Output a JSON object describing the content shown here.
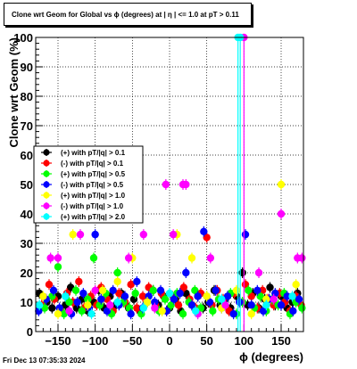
{
  "footer": "Fri Dec 13 07:35:33 2024",
  "chart_data": {
    "type": "scatter",
    "title": "Clone wrt Geom for Global vs ϕ (degrees) at | η | <= 1.0 at pT > 0.11",
    "xlabel": "ϕ (degrees)",
    "ylabel": "Clone wrt Geom (%)",
    "xlim": [
      -180,
      180
    ],
    "ylim": [
      0,
      100
    ],
    "xticks": [
      -150,
      -100,
      -50,
      0,
      50,
      100,
      150
    ],
    "xtick_labels": [
      "−150",
      "−100",
      "−50",
      "0",
      "50",
      "100",
      "150"
    ],
    "yticks": [
      0,
      10,
      20,
      30,
      40,
      50,
      60,
      70,
      80,
      90,
      100
    ],
    "ytick_labels": [
      "0",
      "10",
      "20",
      "30",
      "40",
      "50",
      "60",
      "70",
      "80",
      "90",
      "100"
    ],
    "grid": true,
    "legend_position": "left-middle",
    "series": [
      {
        "name": "(+) with pT/|q| > 0.1",
        "color": "#000000",
        "points": [
          [
            -175,
            13
          ],
          [
            -165,
            10
          ],
          [
            -158,
            8
          ],
          [
            -150,
            12
          ],
          [
            -140,
            9
          ],
          [
            -133,
            15
          ],
          [
            -125,
            8
          ],
          [
            -118,
            11
          ],
          [
            -110,
            7
          ],
          [
            -102,
            10
          ],
          [
            -95,
            14
          ],
          [
            -88,
            8
          ],
          [
            -80,
            12
          ],
          [
            -72,
            9
          ],
          [
            -65,
            13
          ],
          [
            -55,
            8
          ],
          [
            -48,
            11
          ],
          [
            -40,
            7
          ],
          [
            -30,
            10
          ],
          [
            -22,
            14
          ],
          [
            -15,
            9
          ],
          [
            -8,
            12
          ],
          [
            0,
            8
          ],
          [
            8,
            11
          ],
          [
            15,
            7
          ],
          [
            22,
            13
          ],
          [
            30,
            9
          ],
          [
            38,
            12
          ],
          [
            45,
            8
          ],
          [
            52,
            10
          ],
          [
            60,
            14
          ],
          [
            68,
            9
          ],
          [
            75,
            11
          ],
          [
            82,
            8
          ],
          [
            90,
            12
          ],
          [
            98,
            20
          ],
          [
            105,
            9
          ],
          [
            112,
            13
          ],
          [
            120,
            8
          ],
          [
            128,
            11
          ],
          [
            135,
            15
          ],
          [
            142,
            9
          ],
          [
            150,
            12
          ],
          [
            158,
            8
          ],
          [
            165,
            10
          ],
          [
            172,
            13
          ]
        ]
      },
      {
        "name": "(-) with pT/|q| > 0.1",
        "color": "#ff0000",
        "points": [
          [
            -172,
            9
          ],
          [
            -162,
            16
          ],
          [
            -155,
            11
          ],
          [
            -146,
            7
          ],
          [
            -138,
            13
          ],
          [
            -130,
            10
          ],
          [
            -122,
            17
          ],
          [
            -115,
            8
          ],
          [
            -106,
            12
          ],
          [
            -98,
            9
          ],
          [
            -92,
            15
          ],
          [
            -84,
            11
          ],
          [
            -76,
            7
          ],
          [
            -68,
            13
          ],
          [
            -60,
            10
          ],
          [
            -52,
            16
          ],
          [
            -44,
            8
          ],
          [
            -36,
            12
          ],
          [
            -28,
            15
          ],
          [
            -19,
            9
          ],
          [
            -11,
            13
          ],
          [
            -4,
            7
          ],
          [
            4,
            12
          ],
          [
            12,
            9
          ],
          [
            19,
            15
          ],
          [
            27,
            11
          ],
          [
            35,
            8
          ],
          [
            42,
            13
          ],
          [
            50,
            32
          ],
          [
            57,
            9
          ],
          [
            64,
            14
          ],
          [
            72,
            11
          ],
          [
            80,
            7
          ],
          [
            87,
            13
          ],
          [
            95,
            10
          ],
          [
            102,
            16
          ],
          [
            110,
            12
          ],
          [
            118,
            8
          ],
          [
            125,
            14
          ],
          [
            132,
            11
          ],
          [
            140,
            9
          ],
          [
            148,
            13
          ],
          [
            155,
            10
          ],
          [
            162,
            7
          ],
          [
            170,
            12
          ],
          [
            177,
            9
          ]
        ]
      },
      {
        "name": "(+) with pT/|q| > 0.5",
        "color": "#00ff00",
        "points": [
          [
            -168,
            8
          ],
          [
            -158,
            12
          ],
          [
            -150,
            22
          ],
          [
            -142,
            6
          ],
          [
            -135,
            10
          ],
          [
            -126,
            14
          ],
          [
            -118,
            7
          ],
          [
            -110,
            11
          ],
          [
            -102,
            25
          ],
          [
            -94,
            9
          ],
          [
            -86,
            13
          ],
          [
            -78,
            6
          ],
          [
            -70,
            20
          ],
          [
            -62,
            10
          ],
          [
            -54,
            8
          ],
          [
            -46,
            13
          ],
          [
            -38,
            6
          ],
          [
            -30,
            10
          ],
          [
            -22,
            14
          ],
          [
            -14,
            7
          ],
          [
            -6,
            11
          ],
          [
            2,
            9
          ],
          [
            10,
            13
          ],
          [
            18,
            6
          ],
          [
            26,
            10
          ],
          [
            34,
            14
          ],
          [
            42,
            8
          ],
          [
            50,
            12
          ],
          [
            58,
            7
          ],
          [
            66,
            11
          ],
          [
            74,
            9
          ],
          [
            82,
            13
          ],
          [
            90,
            6
          ],
          [
            98,
            10
          ],
          [
            106,
            14
          ],
          [
            114,
            8
          ],
          [
            122,
            12
          ],
          [
            130,
            7
          ],
          [
            138,
            11
          ],
          [
            146,
            9
          ],
          [
            154,
            13
          ],
          [
            162,
            6
          ],
          [
            170,
            10
          ],
          [
            178,
            8
          ]
        ]
      },
      {
        "name": "(-) with pT/|q| > 0.5",
        "color": "#0000ff",
        "points": [
          [
            -176,
            7
          ],
          [
            -166,
            11
          ],
          [
            -156,
            14
          ],
          [
            -148,
            8
          ],
          [
            -140,
            12
          ],
          [
            -132,
            6
          ],
          [
            -124,
            10
          ],
          [
            -116,
            13
          ],
          [
            -108,
            8
          ],
          [
            -100,
            33
          ],
          [
            -92,
            11
          ],
          [
            -84,
            7
          ],
          [
            -76,
            14
          ],
          [
            -68,
            9
          ],
          [
            -60,
            12
          ],
          [
            -52,
            6
          ],
          [
            -44,
            17
          ],
          [
            -36,
            8
          ],
          [
            -28,
            12
          ],
          [
            -20,
            10
          ],
          [
            -12,
            14
          ],
          [
            -4,
            7
          ],
          [
            6,
            11
          ],
          [
            14,
            13
          ],
          [
            22,
            20
          ],
          [
            30,
            9
          ],
          [
            38,
            12
          ],
          [
            46,
            34
          ],
          [
            54,
            10
          ],
          [
            62,
            14
          ],
          [
            70,
            8
          ],
          [
            78,
            12
          ],
          [
            86,
            6
          ],
          [
            94,
            10
          ],
          [
            102,
            33
          ],
          [
            110,
            9
          ],
          [
            118,
            14
          ],
          [
            126,
            7
          ],
          [
            134,
            11
          ],
          [
            142,
            13
          ],
          [
            150,
            9
          ],
          [
            158,
            12
          ],
          [
            166,
            7
          ],
          [
            174,
            11
          ]
        ]
      },
      {
        "name": "(+) with pT/|q| > 1.0",
        "color": "#ffff00",
        "points": [
          [
            -170,
            12
          ],
          [
            -150,
            6
          ],
          [
            -130,
            33
          ],
          [
            -110,
            9
          ],
          [
            -90,
            14
          ],
          [
            -70,
            17
          ],
          [
            -50,
            25
          ],
          [
            -30,
            10
          ],
          [
            -10,
            7
          ],
          [
            10,
            33
          ],
          [
            30,
            25
          ],
          [
            50,
            12
          ],
          [
            70,
            8
          ],
          [
            90,
            14
          ],
          [
            110,
            6
          ],
          [
            130,
            11
          ],
          [
            150,
            50
          ],
          [
            170,
            16
          ]
        ]
      },
      {
        "name": "(-) with pT/|q| > 1.0",
        "color": "#ff00ff",
        "points": [
          [
            -160,
            25
          ],
          [
            -150,
            25
          ],
          [
            -135,
            7
          ],
          [
            -120,
            33
          ],
          [
            -100,
            14
          ],
          [
            -80,
            9
          ],
          [
            -55,
            25
          ],
          [
            -35,
            33
          ],
          [
            -20,
            8
          ],
          [
            -5,
            50
          ],
          [
            5,
            33
          ],
          [
            18,
            50
          ],
          [
            22,
            50
          ],
          [
            38,
            6
          ],
          [
            55,
            25
          ],
          [
            75,
            9
          ],
          [
            100,
            100
          ],
          [
            120,
            20
          ],
          [
            140,
            11
          ],
          [
            150,
            40
          ],
          [
            172,
            25
          ],
          [
            178,
            25
          ]
        ]
      },
      {
        "name": "(+) with pT/|q| > 2.0",
        "color": "#00ffff",
        "points": [
          [
            -175,
            9
          ],
          [
            -140,
            12
          ],
          [
            -105,
            6
          ],
          [
            -70,
            10
          ],
          [
            -35,
            8
          ],
          [
            0,
            13
          ],
          [
            35,
            7
          ],
          [
            70,
            11
          ],
          [
            92,
            100
          ],
          [
            95,
            100
          ],
          [
            130,
            9
          ],
          [
            165,
            12
          ]
        ]
      }
    ]
  }
}
